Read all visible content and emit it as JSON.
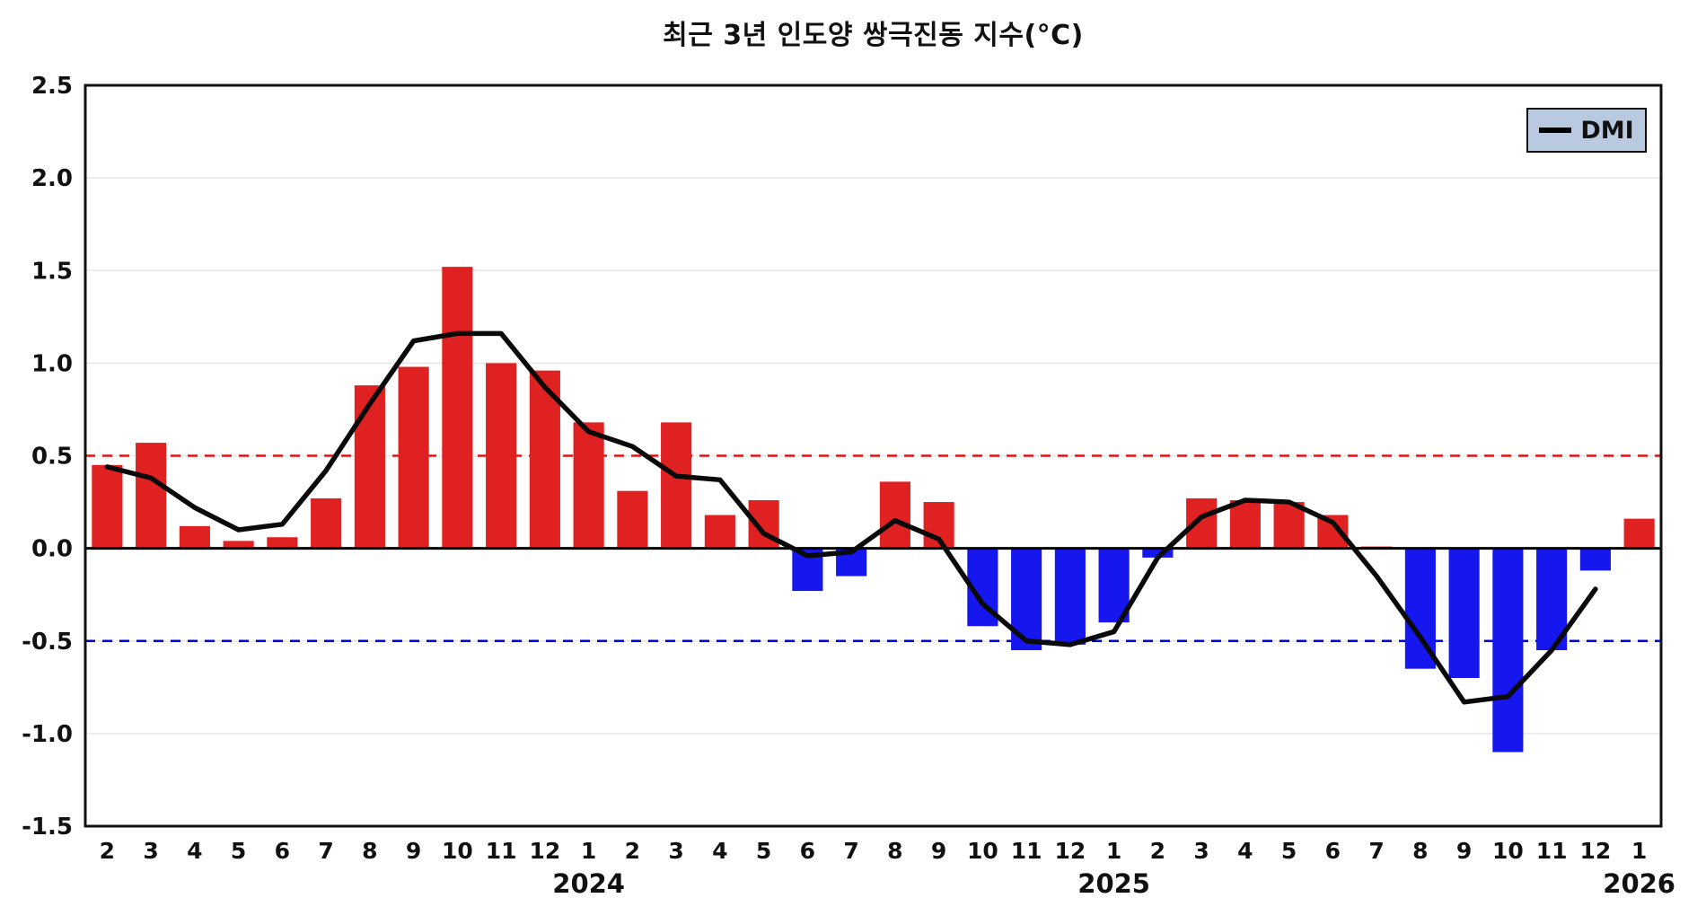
{
  "title": "최근 3년 인도양 쌍극진동 지수(°C)",
  "legend": {
    "label": "DMI"
  },
  "colors": {
    "positive_bar": "#e02121",
    "negative_bar": "#1616ee",
    "dmi_line": "#0a0a0a",
    "positive_threshold": "#e01414",
    "negative_threshold": "#0000cc",
    "zero_line": "#000000",
    "grid": "#e7e7e7",
    "axis": "#111111",
    "legend_bg": "#b9c9e0"
  },
  "chart_data": {
    "type": "bar+line",
    "title": "최근 3년 인도양 쌍극진동 지수(°C)",
    "x_months": [
      "2",
      "3",
      "4",
      "5",
      "6",
      "7",
      "8",
      "9",
      "10",
      "11",
      "12",
      "1",
      "2",
      "3",
      "4",
      "5",
      "6",
      "7",
      "8",
      "9",
      "10",
      "11",
      "12",
      "1",
      "2",
      "3",
      "4",
      "5",
      "6",
      "7",
      "8",
      "9",
      "10",
      "11",
      "12",
      "1"
    ],
    "year_labels": [
      {
        "label": "2024",
        "index": 11
      },
      {
        "label": "2025",
        "index": 23
      },
      {
        "label": "2026",
        "index": 35
      }
    ],
    "bar_values": [
      0.45,
      0.57,
      0.12,
      0.04,
      0.06,
      0.27,
      0.88,
      0.98,
      1.52,
      1.0,
      0.96,
      0.68,
      0.31,
      0.68,
      0.18,
      0.26,
      -0.23,
      -0.15,
      0.36,
      0.25,
      -0.42,
      -0.55,
      -0.52,
      -0.4,
      -0.05,
      0.27,
      0.26,
      0.25,
      0.18,
      0.01,
      -0.65,
      -0.7,
      -1.1,
      -0.55,
      -0.12,
      0.16
    ],
    "line_series_name": "DMI",
    "line_values": [
      0.44,
      0.38,
      0.22,
      0.1,
      0.13,
      0.42,
      0.78,
      1.12,
      1.16,
      1.16,
      0.87,
      0.63,
      0.55,
      0.39,
      0.37,
      0.08,
      -0.04,
      -0.02,
      0.15,
      0.05,
      -0.3,
      -0.5,
      -0.52,
      -0.45,
      -0.05,
      0.17,
      0.26,
      0.25,
      0.14,
      -0.15,
      -0.48,
      -0.83,
      -0.8,
      -0.55,
      -0.22
    ],
    "ylim": [
      -1.5,
      2.5
    ],
    "ytick_step": 0.5,
    "thresholds": {
      "positive": 0.5,
      "negative": -0.5
    },
    "grid": "horizontal",
    "legend_position": "top-right"
  }
}
